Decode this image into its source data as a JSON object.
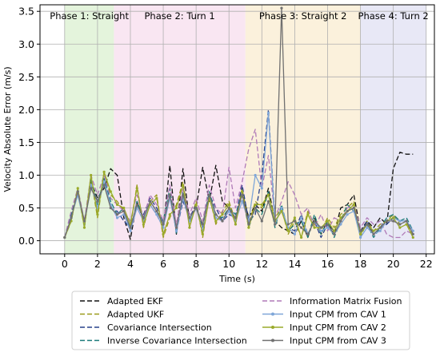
{
  "chart_data": {
    "type": "line",
    "xlabel": "Time (s)",
    "ylabel": "Velocity Absolute Error (m/s)",
    "xlim": [
      -1.5,
      22.5
    ],
    "ylim": [
      -0.2,
      3.6
    ],
    "xticks": [
      "0",
      "2",
      "4",
      "6",
      "8",
      "10",
      "12",
      "14",
      "16",
      "18",
      "20",
      "22"
    ],
    "yticks": [
      "0.0",
      "0.5",
      "1.0",
      "1.5",
      "2.0",
      "2.5",
      "3.0",
      "3.5"
    ],
    "grid": true,
    "legend_position": "bottom-center",
    "phases": [
      {
        "label": "Phase 1: Straight",
        "x0": 0,
        "x1": 3,
        "color": "#e4f4dc"
      },
      {
        "label": "Phase 2: Turn 1",
        "x0": 3,
        "x1": 11,
        "color": "#f9e6f2"
      },
      {
        "label": "Phase 3: Straight 2",
        "x0": 11,
        "x1": 18,
        "color": "#fbf1dc"
      },
      {
        "label": "Phase 4: Turn 2",
        "x0": 18,
        "x1": 22,
        "color": "#e8e8f6"
      }
    ],
    "x": [
      0,
      0.4,
      0.8,
      1.2,
      1.6,
      2.0,
      2.4,
      2.8,
      3.2,
      3.6,
      4.0,
      4.4,
      4.8,
      5.2,
      5.6,
      6.0,
      6.4,
      6.8,
      7.2,
      7.6,
      8.0,
      8.4,
      8.8,
      9.2,
      9.6,
      10.0,
      10.4,
      10.8,
      11.2,
      11.6,
      12.0,
      12.4,
      12.8,
      13.2,
      13.6,
      14.0,
      14.4,
      14.8,
      15.2,
      15.6,
      16.0,
      16.4,
      16.8,
      17.2,
      17.6,
      18.0,
      18.4,
      18.8,
      19.2,
      19.6,
      20.0,
      20.4,
      20.8,
      21.2
    ],
    "series": [
      {
        "name": "Adapted EKF",
        "color": "#111111",
        "dash": "6,3",
        "marker": "none",
        "values": [
          0.05,
          0.3,
          0.8,
          0.25,
          0.9,
          0.65,
          0.8,
          1.1,
          1.0,
          0.35,
          0.02,
          0.6,
          0.3,
          0.55,
          0.4,
          0.2,
          1.15,
          0.1,
          1.1,
          0.3,
          0.5,
          1.12,
          0.6,
          1.15,
          0.6,
          0.5,
          0.3,
          0.75,
          0.35,
          0.55,
          0.45,
          0.8,
          0.3,
          0.2,
          0.15,
          0.1,
          0.3,
          0.05,
          0.35,
          0.1,
          0.3,
          0.1,
          0.5,
          0.55,
          0.7,
          0.15,
          0.3,
          0.2,
          0.35,
          0.25,
          1.1,
          1.35,
          1.32,
          1.32
        ]
      },
      {
        "name": "Adapted UKF",
        "color": "#9a9a1a",
        "dash": "6,3",
        "marker": "none",
        "values": [
          0.05,
          0.35,
          0.75,
          0.2,
          0.95,
          0.35,
          1.05,
          0.7,
          0.6,
          0.45,
          0.2,
          0.85,
          0.2,
          0.6,
          0.7,
          0.05,
          0.35,
          0.55,
          0.9,
          0.25,
          0.6,
          0.05,
          0.7,
          0.25,
          0.45,
          0.6,
          0.3,
          0.8,
          0.25,
          0.6,
          0.5,
          0.7,
          0.35,
          0.5,
          0.1,
          0.3,
          0.05,
          0.45,
          0.25,
          0.15,
          0.35,
          0.2,
          0.4,
          0.5,
          0.6,
          0.05,
          0.3,
          0.15,
          0.25,
          0.3,
          0.4,
          0.25,
          0.3,
          0.05
        ]
      },
      {
        "name": "Covariance Intersection",
        "color": "#27408b",
        "dash": "6,3",
        "marker": "none",
        "values": [
          0.05,
          0.4,
          0.7,
          0.3,
          0.85,
          0.6,
          0.9,
          0.5,
          0.45,
          0.3,
          0.2,
          0.55,
          0.4,
          0.65,
          0.5,
          0.25,
          0.7,
          0.15,
          0.6,
          0.35,
          0.55,
          0.2,
          0.7,
          0.5,
          0.3,
          0.4,
          0.35,
          0.85,
          0.3,
          0.4,
          1.0,
          2.0,
          0.3,
          0.45,
          0.2,
          0.15,
          0.4,
          0.1,
          0.3,
          0.05,
          0.25,
          0.15,
          0.35,
          0.45,
          0.5,
          0.1,
          0.3,
          0.1,
          0.2,
          0.25,
          0.35,
          0.3,
          0.3,
          0.1
        ]
      },
      {
        "name": "Inverse Covariance Intersection",
        "color": "#1a7a7a",
        "dash": "6,3",
        "marker": "none",
        "values": [
          0.05,
          0.4,
          0.75,
          0.25,
          0.95,
          0.55,
          0.95,
          0.6,
          0.4,
          0.5,
          0.15,
          0.6,
          0.35,
          0.6,
          0.45,
          0.3,
          0.8,
          0.1,
          0.75,
          0.3,
          0.5,
          0.25,
          0.75,
          0.4,
          0.35,
          0.5,
          0.4,
          0.7,
          0.2,
          0.5,
          0.4,
          0.75,
          0.2,
          0.55,
          0.15,
          0.25,
          0.3,
          0.05,
          0.4,
          0.1,
          0.3,
          0.05,
          0.3,
          0.55,
          0.45,
          0.1,
          0.25,
          0.05,
          0.2,
          0.35,
          0.4,
          0.3,
          0.35,
          0.15
        ]
      },
      {
        "name": "Information Matrix Fusion",
        "color": "#b07ab8",
        "dash": "6,3",
        "marker": "none",
        "values": [
          0.05,
          0.45,
          0.8,
          0.3,
          1.0,
          0.7,
          1.0,
          0.65,
          0.55,
          0.45,
          0.3,
          0.7,
          0.35,
          0.7,
          0.55,
          0.3,
          0.85,
          0.25,
          0.8,
          0.4,
          0.65,
          0.3,
          0.85,
          0.5,
          0.4,
          1.12,
          0.5,
          0.9,
          1.4,
          1.7,
          0.8,
          1.3,
          0.35,
          0.6,
          0.9,
          0.7,
          0.4,
          0.5,
          0.2,
          0.4,
          0.15,
          0.35,
          0.3,
          0.5,
          0.55,
          0.2,
          0.35,
          0.25,
          0.3,
          0.1,
          0.05,
          0.05,
          0.15,
          0.1
        ]
      },
      {
        "name": "Input CPM from CAV 1",
        "color": "#7fa6d8",
        "dash": "",
        "marker": "circle",
        "values": [
          0.05,
          0.35,
          0.7,
          0.25,
          0.85,
          0.5,
          0.9,
          0.55,
          0.35,
          0.4,
          0.15,
          0.5,
          0.3,
          0.55,
          0.4,
          0.2,
          0.65,
          0.15,
          0.65,
          0.3,
          0.5,
          0.15,
          0.65,
          0.35,
          0.3,
          0.45,
          0.3,
          0.6,
          0.3,
          1.0,
          0.8,
          1.95,
          0.25,
          0.5,
          0.2,
          0.1,
          0.35,
          0.1,
          0.3,
          0.15,
          0.2,
          0.1,
          0.25,
          0.4,
          0.45,
          0.05,
          0.2,
          0.1,
          0.15,
          0.3,
          0.35,
          0.3,
          0.3,
          0.15
        ]
      },
      {
        "name": "Input CPM from CAV 2",
        "color": "#9aaa2a",
        "dash": "",
        "marker": "circle",
        "values": [
          0.05,
          0.3,
          0.8,
          0.2,
          1.0,
          0.4,
          1.05,
          0.75,
          0.55,
          0.5,
          0.25,
          0.8,
          0.25,
          0.55,
          0.65,
          0.1,
          0.4,
          0.5,
          0.85,
          0.2,
          0.55,
          0.1,
          0.65,
          0.3,
          0.4,
          0.55,
          0.25,
          0.75,
          0.2,
          0.55,
          0.55,
          0.7,
          0.3,
          0.45,
          0.15,
          0.35,
          0.05,
          0.4,
          0.2,
          0.2,
          0.3,
          0.15,
          0.35,
          0.45,
          0.55,
          0.1,
          0.25,
          0.15,
          0.2,
          0.3,
          0.35,
          0.2,
          0.25,
          0.05
        ]
      },
      {
        "name": "Input CPM from CAV 3",
        "color": "#707070",
        "dash": "",
        "marker": "circle",
        "values": [
          0.05,
          0.35,
          0.75,
          0.3,
          0.8,
          0.6,
          0.85,
          0.5,
          0.4,
          0.45,
          0.2,
          0.55,
          0.35,
          0.6,
          0.45,
          0.25,
          0.7,
          0.2,
          0.7,
          0.35,
          0.5,
          0.25,
          0.7,
          0.4,
          0.3,
          0.5,
          0.35,
          0.7,
          0.25,
          0.5,
          0.3,
          0.6,
          0.25,
          3.55,
          0.25,
          0.3,
          0.2,
          0.1,
          0.3,
          0.2,
          0.25,
          0.1,
          0.3,
          0.45,
          0.5,
          0.15,
          0.25,
          0.1,
          0.2,
          0.3,
          0.3,
          0.25,
          0.3,
          0.1
        ]
      }
    ]
  }
}
